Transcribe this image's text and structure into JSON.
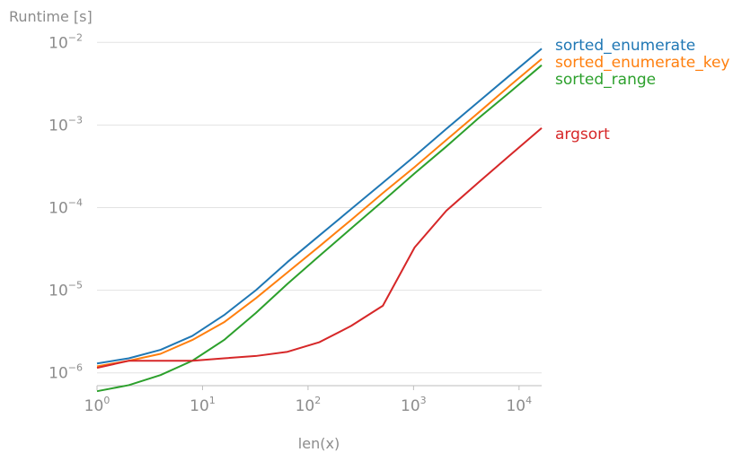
{
  "chart_data": {
    "type": "line",
    "title": "",
    "xlabel": "len(x)",
    "ylabel": "Runtime [s]",
    "xscale": "log",
    "yscale": "log",
    "xlim": [
      1,
      16384
    ],
    "ylim": [
      7e-07,
      0.012
    ],
    "x": [
      1,
      2,
      4,
      8,
      16,
      32,
      64,
      128,
      256,
      512,
      1024,
      2048,
      4096,
      8192,
      16384
    ],
    "x_ticks": [
      {
        "value": 1,
        "base": "10",
        "exp": "0"
      },
      {
        "value": 10,
        "base": "10",
        "exp": "1"
      },
      {
        "value": 100,
        "base": "10",
        "exp": "2"
      },
      {
        "value": 1000,
        "base": "10",
        "exp": "3"
      },
      {
        "value": 10000,
        "base": "10",
        "exp": "4"
      }
    ],
    "y_ticks": [
      {
        "value": 1e-06,
        "base": "10",
        "exp": "−6"
      },
      {
        "value": 1e-05,
        "base": "10",
        "exp": "−5"
      },
      {
        "value": 0.0001,
        "base": "10",
        "exp": "−4"
      },
      {
        "value": 0.001,
        "base": "10",
        "exp": "−3"
      },
      {
        "value": 0.01,
        "base": "10",
        "exp": "−2"
      }
    ],
    "legend_placement": "right, labels at line ends",
    "series": [
      {
        "name": "sorted_enumerate",
        "color": "#1f77b4",
        "values": [
          1.3e-06,
          1.5e-06,
          1.9e-06,
          2.8e-06,
          5e-06,
          1e-05,
          2.2e-05,
          4.6e-05,
          9.6e-05,
          0.0002,
          0.00042,
          0.0009,
          0.0019,
          0.004,
          0.0084
        ]
      },
      {
        "name": "sorted_enumerate_key",
        "color": "#ff7f0e",
        "values": [
          1.2e-06,
          1.4e-06,
          1.7e-06,
          2.5e-06,
          4.1e-06,
          8e-06,
          1.65e-05,
          3.4e-05,
          7.1e-05,
          0.00015,
          0.00031,
          0.00066,
          0.0014,
          0.003,
          0.0063
        ]
      },
      {
        "name": "sorted_range",
        "color": "#2ca02c",
        "values": [
          6e-07,
          7.1e-07,
          9.4e-07,
          1.4e-06,
          2.5e-06,
          5.3e-06,
          1.2e-05,
          2.6e-05,
          5.6e-05,
          0.00012,
          0.00026,
          0.00055,
          0.0012,
          0.0025,
          0.0053
        ]
      },
      {
        "name": "argsort",
        "color": "#d62728",
        "values": [
          1.15e-06,
          1.4e-06,
          1.4e-06,
          1.4e-06,
          1.5e-06,
          1.6e-06,
          1.8e-06,
          2.35e-06,
          3.7e-06,
          6.5e-06,
          3.3e-05,
          9.2e-05,
          0.0002,
          0.00043,
          0.00092
        ]
      }
    ]
  }
}
